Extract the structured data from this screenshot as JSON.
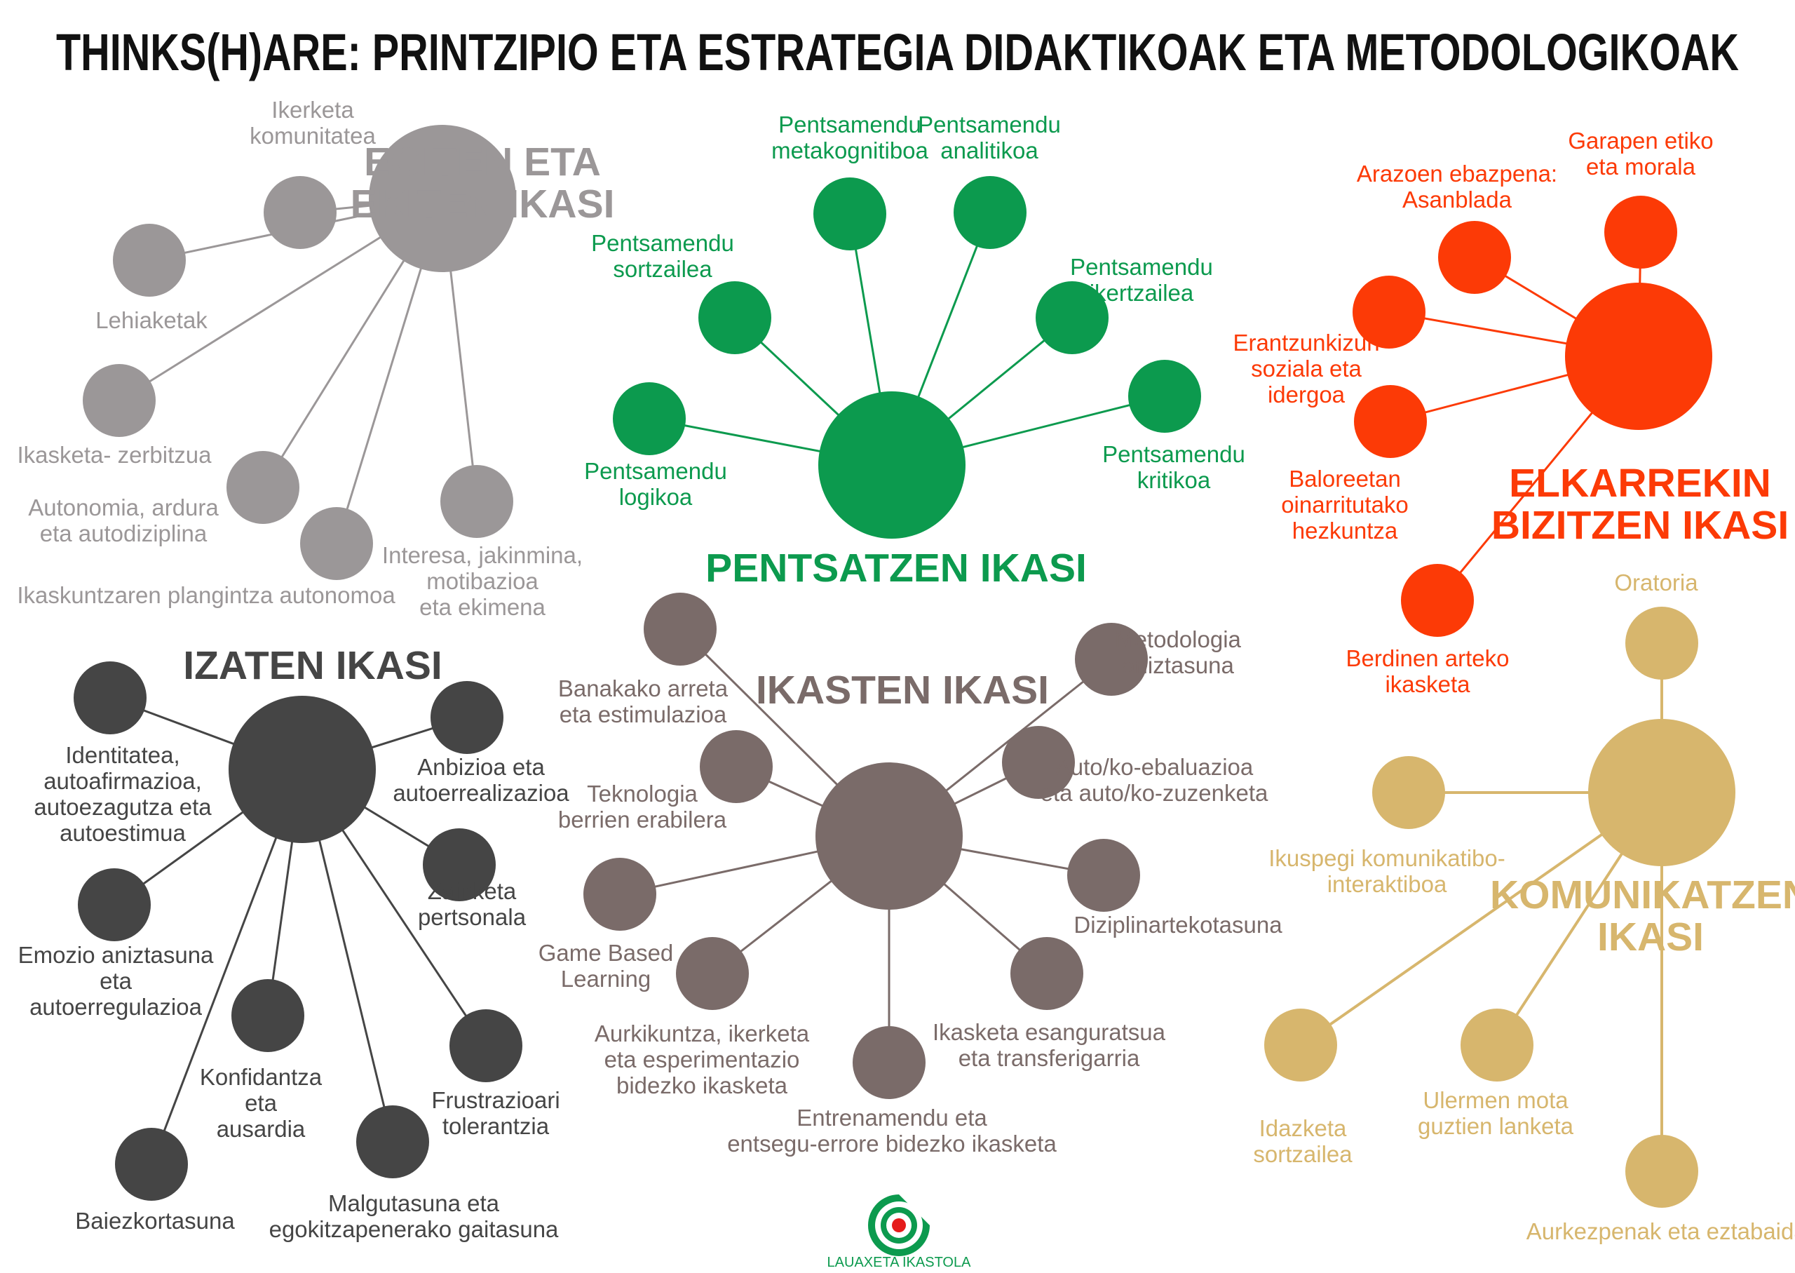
{
  "title": "THINKS(H)ARE: PRINTZIPIO ETA ESTRATEGIA DIDAKTIKOAK ETA METODOLOGIKOAK",
  "logo_text": "LAUAXETA IKASTOLA",
  "groups": [
    {
      "id": "egiten",
      "color": "#9b9798",
      "title_lines": [
        "EGITEN ETA",
        "EKITEN IKASI"
      ],
      "nodes": [
        {
          "lines": [
            "Ikerketa",
            "komunitatea"
          ]
        },
        {
          "lines": [
            "Lehiaketak"
          ]
        },
        {
          "lines": [
            "Ikasketa- zerbitzua"
          ]
        },
        {
          "lines": [
            "Autonomia, ardura",
            "eta autodiziplina"
          ]
        },
        {
          "lines": [
            "Ikaskuntzaren plangintza autonomoa"
          ]
        },
        {
          "lines": [
            "Interesa, jakinmina,",
            "motibazioa",
            "eta ekimena"
          ]
        }
      ]
    },
    {
      "id": "pentsatzen",
      "color": "#0c9a4e",
      "title_lines": [
        "PENTSATZEN IKASI"
      ],
      "nodes": [
        {
          "lines": [
            "Pentsamendu",
            "metakognitiboa"
          ]
        },
        {
          "lines": [
            "Pentsamendu",
            "analitikoa"
          ]
        },
        {
          "lines": [
            "Pentsamendu",
            "sortzailea"
          ]
        },
        {
          "lines": [
            "Pentsamendu",
            "ikertzailea"
          ]
        },
        {
          "lines": [
            "Pentsamendu",
            "logikoa"
          ]
        },
        {
          "lines": [
            "Pentsamendu",
            "kritikoa"
          ]
        }
      ]
    },
    {
      "id": "elkarrekin",
      "color": "#fc3a06",
      "title_lines": [
        "ELKARREKIN",
        "BIZITZEN IKASI"
      ],
      "nodes": [
        {
          "lines": [
            "Arazoen ebazpena:",
            "Asanblada"
          ]
        },
        {
          "lines": [
            "Garapen etiko",
            "eta morala"
          ]
        },
        {
          "lines": [
            "Erantzunkizun",
            "soziala eta",
            "idergoa"
          ]
        },
        {
          "lines": [
            "Baloreetan",
            "oinarritutako",
            "hezkuntza"
          ]
        },
        {
          "lines": [
            "Berdinen arteko",
            "ikasketa"
          ]
        }
      ]
    },
    {
      "id": "izaten",
      "color": "#454545",
      "title_lines": [
        "IZATEN IKASI"
      ],
      "nodes": [
        {
          "lines": [
            "Identitatea,",
            "autoafirmazioa,",
            "autoezagutza eta",
            "autoestimua"
          ]
        },
        {
          "lines": [
            "Anbizioa eta",
            "autoerrealizazioa"
          ]
        },
        {
          "lines": [
            "Zainketa",
            "pertsonala"
          ]
        },
        {
          "lines": [
            "Emozio aniztasuna",
            "eta",
            "autoerregulazioa"
          ]
        },
        {
          "lines": [
            "Konfidantza",
            "eta",
            "ausardia"
          ]
        },
        {
          "lines": [
            "Frustrazioari",
            "tolerantzia"
          ]
        },
        {
          "lines": [
            "Baiezkortasuna"
          ]
        },
        {
          "lines": [
            "Malgutasuna eta",
            "egokitzapenerako gaitasuna"
          ]
        }
      ]
    },
    {
      "id": "ikasten",
      "color": "#7a6b69",
      "title_lines": [
        "IKASTEN IKASI"
      ],
      "nodes": [
        {
          "lines": [
            "Banakako arreta",
            "eta estimulazioa"
          ]
        },
        {
          "lines": [
            "Metodologia",
            "aniztasuna"
          ]
        },
        {
          "lines": [
            "Teknologia",
            "berrien erabilera"
          ]
        },
        {
          "lines": [
            "Auto/ko-ebaluazioa",
            "eta auto/ko-zuzenketa"
          ]
        },
        {
          "lines": [
            "Game Based",
            "Learning"
          ]
        },
        {
          "lines": [
            "Diziplinartekotasuna"
          ]
        },
        {
          "lines": [
            "Aurkikuntza, ikerketa",
            "eta esperimentazio",
            "bidezko ikasketa"
          ]
        },
        {
          "lines": [
            "Ikasketa esanguratsua",
            "eta transferigarria"
          ]
        },
        {
          "lines": [
            "Entrenamendu eta",
            "entsegu-errore bidezko ikasketa"
          ]
        }
      ]
    },
    {
      "id": "komunikatzen",
      "color": "#d7b66d",
      "title_lines": [
        "KOMUNIKATZEN",
        "IKASI"
      ],
      "nodes": [
        {
          "lines": [
            "Oratoria"
          ]
        },
        {
          "lines": [
            "Ikuspegi komunikatibo-",
            "interaktiboa"
          ]
        },
        {
          "lines": [
            "Idazketa",
            "sortzailea"
          ]
        },
        {
          "lines": [
            "Ulermen mota",
            "guztien lanketa"
          ]
        },
        {
          "lines": [
            "Aurkezpenak eta eztabaidak"
          ]
        }
      ]
    }
  ]
}
